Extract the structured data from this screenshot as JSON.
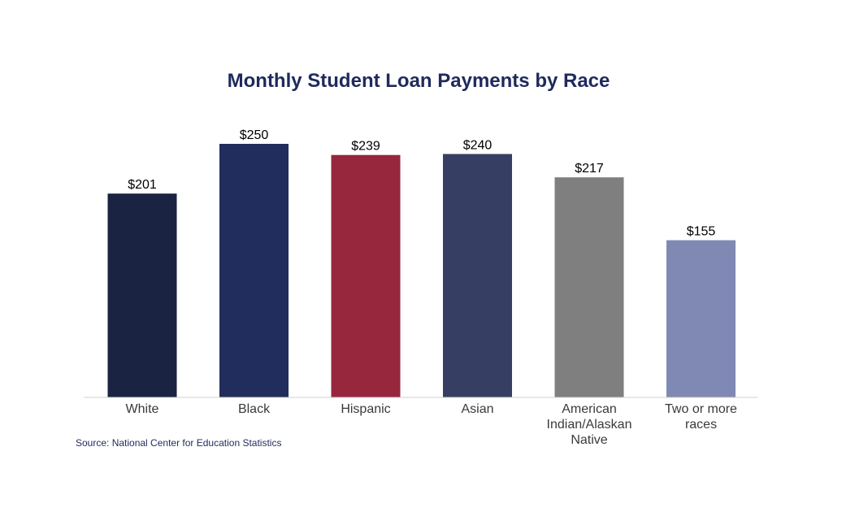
{
  "chart_data": {
    "type": "bar",
    "title": "Monthly Student Loan Payments by Race",
    "categories": [
      [
        "White"
      ],
      [
        "Black"
      ],
      [
        "Hispanic"
      ],
      [
        "Asian"
      ],
      [
        "American",
        "Indian/Alaskan",
        "Native"
      ],
      [
        "Two or more",
        "races"
      ]
    ],
    "values": [
      201,
      250,
      239,
      240,
      217,
      155
    ],
    "value_labels": [
      "$201",
      "$250",
      "$239",
      "$240",
      "$217",
      "$155"
    ],
    "colors": [
      "#1b2342",
      "#212d5c",
      "#96273d",
      "#363f63",
      "#7f7f7f",
      "#7f89b4"
    ],
    "xlabel": "",
    "ylabel": "",
    "ylim": [
      0,
      250
    ],
    "grid": false,
    "source": "Source: National Center for Education Statistics"
  }
}
